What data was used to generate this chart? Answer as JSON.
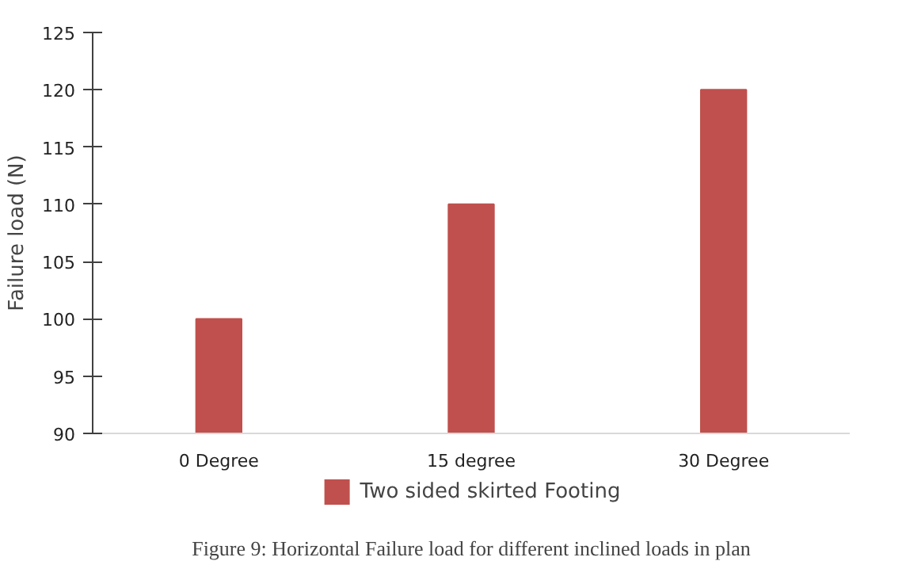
{
  "chart_data": {
    "type": "bar",
    "ylabel": "Failure load (N)",
    "categories": [
      "0 Degree",
      "15 degree",
      "30 Degree"
    ],
    "series": [
      {
        "name": "Two sided skirted Footing",
        "color": "#c0504d",
        "values": [
          100,
          110,
          120
        ]
      }
    ],
    "ylim": [
      90,
      125
    ],
    "yticks": [
      90,
      95,
      100,
      105,
      110,
      115,
      120,
      125
    ],
    "grid": false,
    "legend": "bottom",
    "annotations": [
      "Figure 9: Horizontal Failure load for different inclined loads in plan"
    ]
  }
}
